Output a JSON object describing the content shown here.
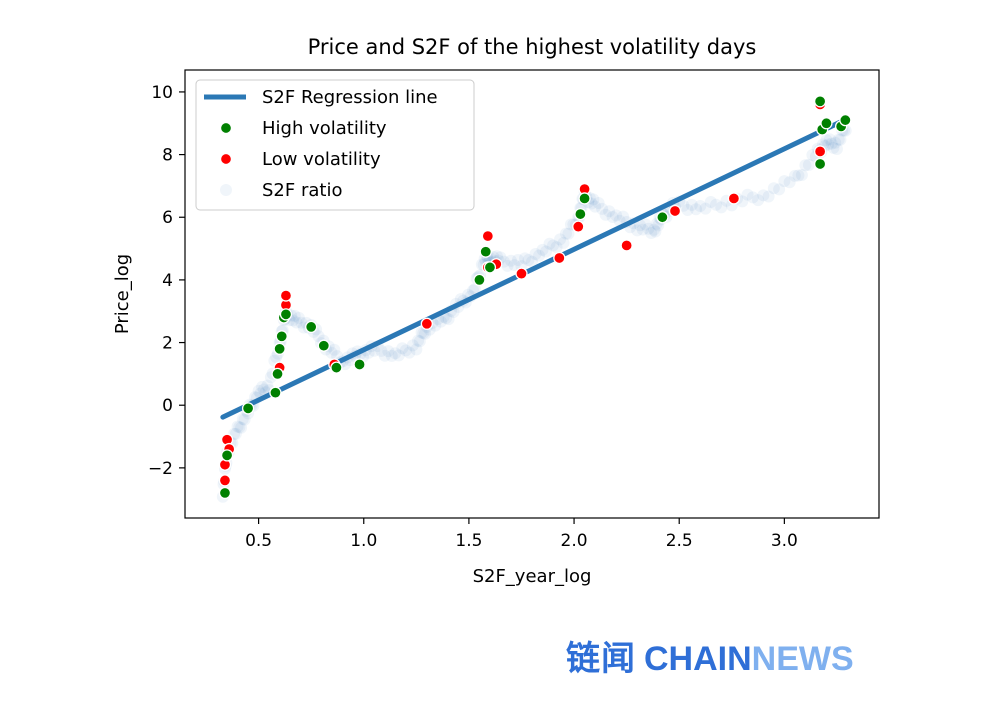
{
  "chart_data": {
    "type": "scatter",
    "title": "Price and S2F of the highest volatility days",
    "xlabel": "S2F_year_log",
    "ylabel": "Price_log",
    "xlim": [
      0.15,
      3.45
    ],
    "ylim": [
      -3.6,
      10.7
    ],
    "xticks": [
      0.5,
      1.0,
      1.5,
      2.0,
      2.5,
      3.0
    ],
    "xtick_labels": [
      "0.5",
      "1.0",
      "1.5",
      "2.0",
      "2.5",
      "3.0"
    ],
    "yticks": [
      -2,
      0,
      2,
      4,
      6,
      8,
      10
    ],
    "ytick_labels": [
      "−2",
      "0",
      "2",
      "4",
      "6",
      "8",
      "10"
    ],
    "grid": false,
    "legend_position": "top-left",
    "series": [
      {
        "name": "S2F Regression line",
        "kind": "line",
        "color": "#2b78b5",
        "x": [
          0.33,
          3.27
        ],
        "y": [
          -0.38,
          9.05
        ]
      },
      {
        "name": "High volatility",
        "kind": "scatter",
        "color": "#008000",
        "x": [
          0.34,
          0.35,
          0.45,
          0.58,
          0.59,
          0.6,
          0.61,
          0.62,
          0.63,
          0.75,
          0.81,
          0.87,
          0.98,
          1.55,
          1.58,
          1.6,
          2.03,
          2.05,
          2.42,
          3.17,
          3.17,
          3.18,
          3.2,
          3.27,
          3.29
        ],
        "y": [
          -2.8,
          -1.6,
          -0.1,
          0.4,
          1.0,
          1.8,
          2.2,
          2.8,
          2.9,
          2.5,
          1.9,
          1.2,
          1.3,
          4.0,
          4.9,
          4.4,
          6.1,
          6.6,
          6.0,
          7.7,
          9.7,
          8.8,
          9.0,
          8.9,
          9.1
        ]
      },
      {
        "name": "Low volatility",
        "kind": "scatter",
        "color": "#ff0000",
        "x": [
          0.34,
          0.34,
          0.34,
          0.35,
          0.36,
          0.6,
          0.63,
          0.63,
          0.86,
          1.3,
          1.59,
          1.59,
          1.63,
          1.75,
          1.93,
          2.02,
          2.05,
          2.25,
          2.48,
          2.76,
          3.17,
          3.17
        ],
        "y": [
          -2.8,
          -2.4,
          -1.9,
          -1.1,
          -1.4,
          1.2,
          3.2,
          3.5,
          1.3,
          2.6,
          4.4,
          5.4,
          4.5,
          4.2,
          4.7,
          5.7,
          6.9,
          5.1,
          6.2,
          6.6,
          8.1,
          9.6
        ]
      },
      {
        "name": "S2F ratio",
        "kind": "scatter",
        "color": "#2b78b5",
        "opacity": 0.07,
        "curve_x": [
          0.33,
          0.35,
          0.4,
          0.45,
          0.5,
          0.55,
          0.6,
          0.63,
          0.68,
          0.75,
          0.82,
          0.9,
          0.97,
          1.05,
          1.15,
          1.25,
          1.3,
          1.38,
          1.45,
          1.52,
          1.57,
          1.6,
          1.65,
          1.75,
          1.85,
          1.95,
          2.02,
          2.05,
          2.1,
          2.2,
          2.3,
          2.38,
          2.42,
          2.48,
          2.6,
          2.75,
          2.9,
          3.05,
          3.15,
          3.2,
          3.25,
          3.3
        ],
        "curve_y": [
          -2.8,
          -1.5,
          -0.8,
          -0.2,
          0.4,
          0.6,
          2.0,
          2.9,
          2.7,
          2.5,
          1.9,
          1.4,
          1.6,
          1.8,
          1.6,
          1.9,
          2.5,
          2.7,
          3.2,
          3.6,
          4.6,
          4.7,
          4.6,
          4.5,
          4.9,
          5.3,
          6.0,
          6.7,
          6.4,
          6.0,
          5.7,
          5.6,
          6.0,
          6.4,
          6.3,
          6.5,
          6.7,
          7.2,
          8.0,
          8.4,
          8.3,
          9.0
        ]
      }
    ]
  },
  "watermark": {
    "cn_text": "链闻",
    "en_part1": "CHAIN",
    "en_part2": "NEWS"
  }
}
